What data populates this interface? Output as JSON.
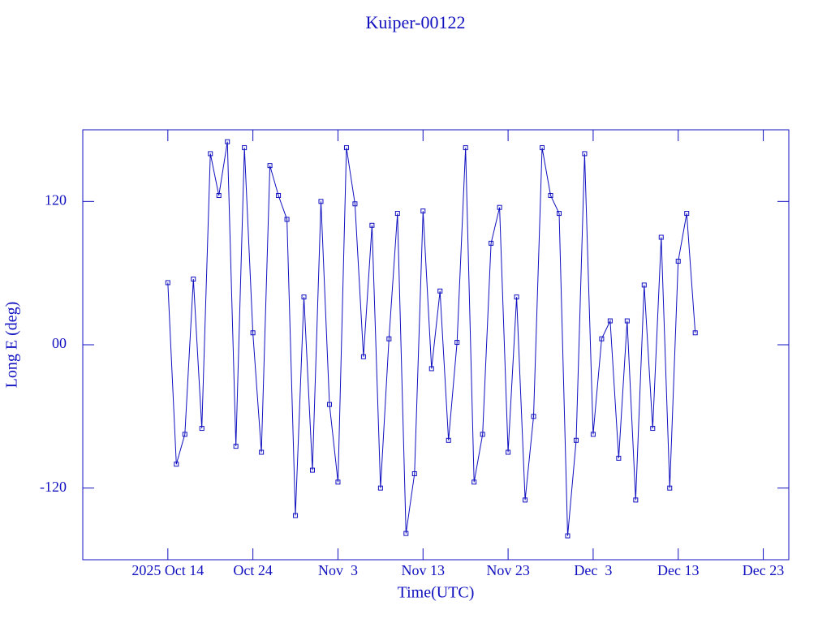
{
  "chart_data": {
    "type": "line",
    "title": "Kuiper-00122",
    "x_label": "Time(UTC)",
    "y_label": "Long E (deg)",
    "x": [
      "2025-10-14",
      "2025-10-15",
      "2025-10-16",
      "2025-10-17",
      "2025-10-18",
      "2025-10-19",
      "2025-10-20",
      "2025-10-21",
      "2025-10-22",
      "2025-10-23",
      "2025-10-24",
      "2025-10-25",
      "2025-10-26",
      "2025-10-27",
      "2025-10-28",
      "2025-10-29",
      "2025-10-30",
      "2025-10-31",
      "2025-11-01",
      "2025-11-02",
      "2025-11-03",
      "2025-11-04",
      "2025-11-05",
      "2025-11-06",
      "2025-11-07",
      "2025-11-08",
      "2025-11-09",
      "2025-11-10",
      "2025-11-11",
      "2025-11-12",
      "2025-11-13",
      "2025-11-14",
      "2025-11-15",
      "2025-11-16",
      "2025-11-17",
      "2025-11-18",
      "2025-11-19",
      "2025-11-20",
      "2025-11-21",
      "2025-11-22",
      "2025-11-23",
      "2025-11-24",
      "2025-11-25",
      "2025-11-26",
      "2025-11-27",
      "2025-11-28",
      "2025-11-29",
      "2025-11-30",
      "2025-12-01",
      "2025-12-02",
      "2025-12-03",
      "2025-12-04",
      "2025-12-05",
      "2025-12-06",
      "2025-12-07",
      "2025-12-08",
      "2025-12-09",
      "2025-12-10",
      "2025-12-11",
      "2025-12-12",
      "2025-12-13",
      "2025-12-14",
      "2025-12-15"
    ],
    "series": [
      {
        "name": "Kuiper-00122",
        "color": "#1010c0",
        "values": [
          52,
          -100,
          -75,
          55,
          -70,
          160,
          125,
          170,
          -85,
          165,
          10,
          -90,
          150,
          125,
          105,
          -143,
          40,
          -105,
          120,
          -50,
          -115,
          165,
          118,
          -10,
          100,
          -120,
          5,
          110,
          -158,
          -108,
          112,
          -20,
          45,
          -80,
          2,
          165,
          -115,
          -75,
          85,
          115,
          -90,
          40,
          -130,
          -60,
          165,
          125,
          110,
          -160,
          -80,
          160,
          -75,
          5,
          20,
          -95,
          20,
          -130,
          50,
          -70,
          90,
          -120,
          70,
          110,
          10
        ]
      }
    ],
    "xlim": [
      "2025-10-04",
      "2025-12-26"
    ],
    "xticks": [
      {
        "value": "2025-10-14",
        "label": "2025 Oct 14"
      },
      {
        "value": "2025-10-24",
        "label": "Oct 24"
      },
      {
        "value": "2025-11-03",
        "label": "Nov  3"
      },
      {
        "value": "2025-11-13",
        "label": "Nov 13"
      },
      {
        "value": "2025-11-23",
        "label": "Nov 23"
      },
      {
        "value": "2025-12-03",
        "label": "Dec  3"
      },
      {
        "value": "2025-12-13",
        "label": "Dec 13"
      },
      {
        "value": "2025-12-23",
        "label": "Dec 23"
      }
    ],
    "ylim": [
      -180,
      180
    ],
    "yticks": [
      -120,
      {
        "value": 0,
        "label": "00"
      },
      120
    ],
    "grid": false
  }
}
